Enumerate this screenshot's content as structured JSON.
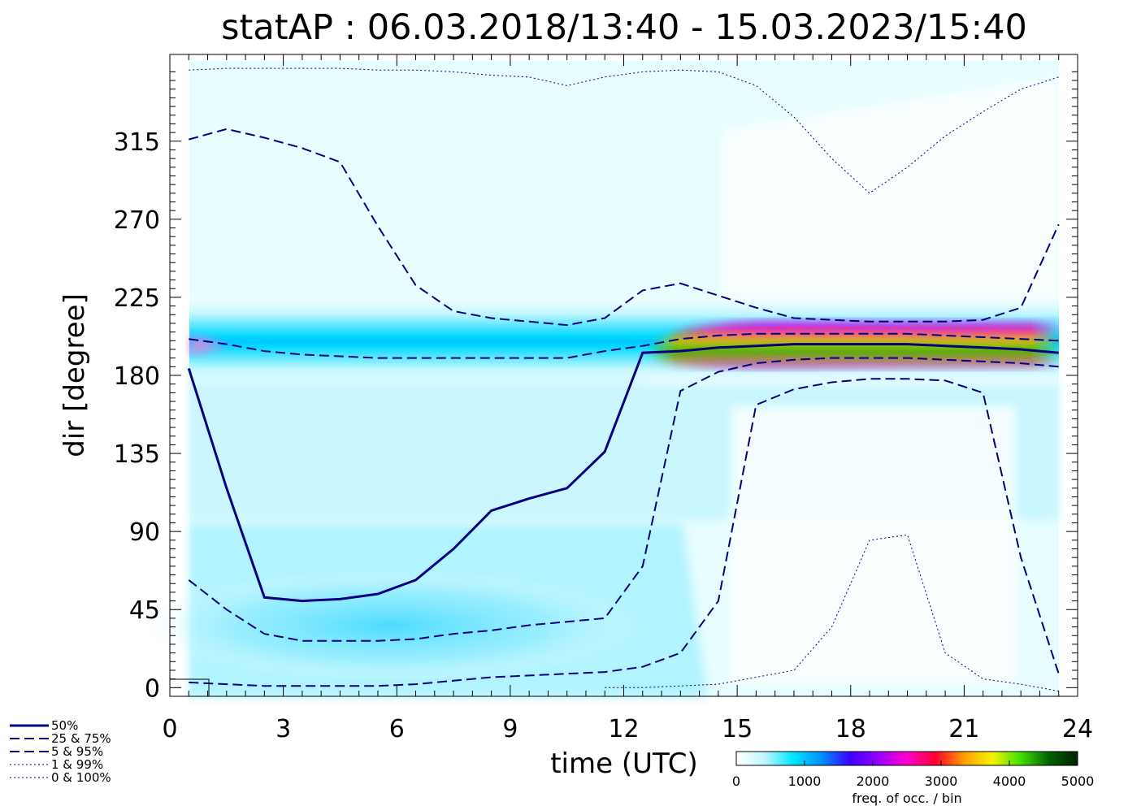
{
  "chart_data": {
    "type": "heatmap",
    "title": "statAP : 06.03.2018/13:40 - 15.03.2023/15:40",
    "xlabel": "time (UTC)",
    "ylabel": "dir [degree]",
    "xlim": [
      0,
      24
    ],
    "ylim": [
      -5,
      365
    ],
    "xticks": [
      0,
      3,
      6,
      9,
      12,
      15,
      18,
      21,
      24
    ],
    "xticklabels": [
      "0",
      "3",
      "6",
      "9",
      "12",
      "15",
      "18",
      "21",
      "24"
    ],
    "yticks": [
      0,
      45,
      90,
      135,
      180,
      225,
      270,
      315
    ],
    "yticklabels": [
      "0",
      "45",
      "90",
      "135",
      "180",
      "225",
      "270",
      "315"
    ],
    "hours": [
      0.5,
      1.5,
      2.5,
      3.5,
      4.5,
      5.5,
      6.5,
      7.5,
      8.5,
      9.5,
      10.5,
      11.5,
      12.5,
      13.5,
      14.5,
      15.5,
      16.5,
      17.5,
      18.5,
      19.5,
      20.5,
      21.5,
      22.5,
      23.5
    ],
    "series": [
      {
        "name": "50%",
        "style": "solid",
        "values": [
          184,
          115,
          52,
          50,
          51,
          54,
          62,
          80,
          102,
          109,
          115,
          136,
          193,
          194,
          196,
          197,
          198,
          198,
          198,
          198,
          197,
          196,
          195,
          193
        ]
      },
      {
        "name": "25%",
        "style": "dashed",
        "values": [
          62,
          45,
          31,
          27,
          27,
          27,
          28,
          31,
          33,
          36,
          38,
          40,
          70,
          171,
          182,
          187,
          189,
          190,
          190,
          190,
          189,
          188,
          187,
          185
        ]
      },
      {
        "name": "75%",
        "style": "dashed",
        "values": [
          201,
          198,
          194,
          192,
          191,
          190,
          190,
          190,
          190,
          190,
          190,
          194,
          197,
          201,
          203,
          204,
          204,
          204,
          204,
          204,
          203,
          202,
          201,
          200
        ]
      },
      {
        "name": "5%",
        "style": "dashed",
        "values": [
          3,
          2,
          1,
          1,
          1,
          1,
          2,
          4,
          6,
          7,
          8,
          9,
          12,
          20,
          50,
          163,
          172,
          176,
          178,
          178,
          177,
          170,
          75,
          8
        ]
      },
      {
        "name": "95%",
        "style": "dashed",
        "values": [
          316,
          322,
          317,
          311,
          303,
          266,
          232,
          217,
          213,
          211,
          209,
          213,
          229,
          233,
          226,
          219,
          213,
          212,
          211,
          211,
          211,
          212,
          219,
          267
        ]
      },
      {
        "name": "1%",
        "style": "dotted",
        "values": [
          null,
          null,
          null,
          null,
          null,
          null,
          null,
          null,
          null,
          null,
          null,
          0,
          0,
          1,
          2,
          6,
          10,
          35,
          85,
          88,
          20,
          5,
          2,
          -2
        ]
      },
      {
        "name": "99%",
        "style": "dotted",
        "values": [
          356,
          357,
          357,
          357,
          357,
          356,
          356,
          355,
          353,
          352,
          347,
          352,
          355,
          356,
          355,
          347,
          329,
          305,
          285,
          300,
          318,
          332,
          345,
          352
        ]
      }
    ],
    "density_band": {
      "name": "freq. of occ. / bin",
      "description": "frequency of occurrence heatmap, peak near 190-200 deg from 13 to 23 UTC"
    },
    "colorbar": {
      "label": "freq. of occ. / bin",
      "range": [
        0,
        5000
      ],
      "ticks": [
        "0",
        "1000",
        "2000",
        "3000",
        "4000",
        "5000"
      ],
      "colors": [
        "#ffffff",
        "#bff6ff",
        "#00e5ff",
        "#0090ff",
        "#3a00ff",
        "#9b00ff",
        "#ff00cc",
        "#ff0030",
        "#ff9d00",
        "#f5f500",
        "#41e000",
        "#006000",
        "#002200"
      ]
    },
    "legend": {
      "placement": "bottom-left",
      "entries": [
        {
          "label": "50%",
          "style": "solid"
        },
        {
          "label": "25 &  75%",
          "style": "dashed"
        },
        {
          "label": "5 &  95%",
          "style": "dashed"
        },
        {
          "label": "1 &  99%",
          "style": "dotted"
        },
        {
          "label": "0 & 100%",
          "style": "dotted"
        }
      ]
    },
    "line_color": "#000080"
  }
}
